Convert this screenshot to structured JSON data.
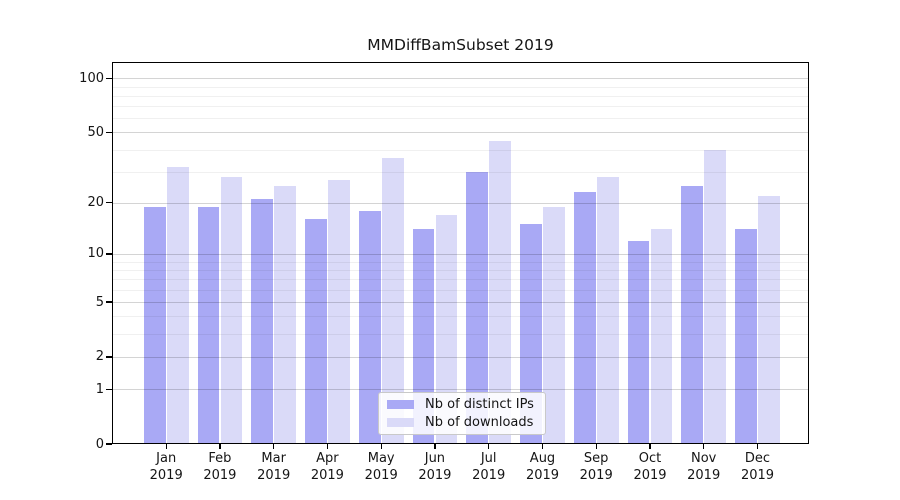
{
  "chart_data": {
    "type": "bar",
    "title": "MMDiffBamSubset 2019",
    "categories": [
      "Jan",
      "Feb",
      "Mar",
      "Apr",
      "May",
      "Jun",
      "Jul",
      "Aug",
      "Sep",
      "Oct",
      "Nov",
      "Dec"
    ],
    "year": "2019",
    "series": [
      {
        "name": "Nb of distinct IPs",
        "color": "#a9a9f5",
        "values": [
          19,
          19,
          21,
          16,
          18,
          14,
          30,
          15,
          23,
          12,
          25,
          14
        ]
      },
      {
        "name": "Nb of downloads",
        "color": "#dadaf8",
        "values": [
          32,
          28,
          25,
          27,
          36,
          17,
          45,
          19,
          28,
          14,
          40,
          22
        ]
      }
    ],
    "y_scale": "log1p",
    "y_ticks": [
      0,
      1,
      2,
      5,
      10,
      20,
      50,
      100
    ],
    "y_minor_gridlines": [
      3,
      4,
      6,
      7,
      8,
      9,
      30,
      40,
      60,
      70,
      80,
      90
    ],
    "ylim": [
      0,
      120
    ],
    "grid": true,
    "legend_position": "lower-center",
    "axis_color": "#000000",
    "background": "#ffffff"
  }
}
